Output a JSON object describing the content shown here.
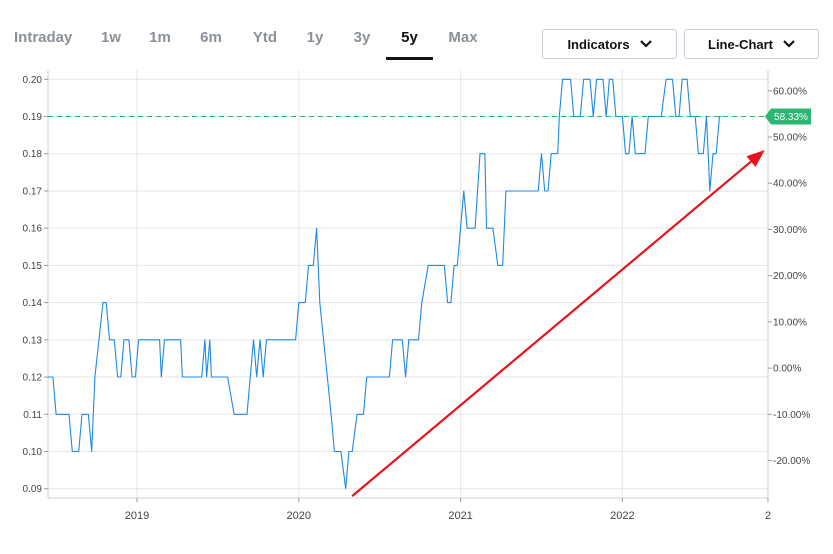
{
  "toolbar": {
    "tabs": [
      {
        "label": "Intraday"
      },
      {
        "label": "1w"
      },
      {
        "label": "1m"
      },
      {
        "label": "6m"
      },
      {
        "label": "Ytd"
      },
      {
        "label": "1y"
      },
      {
        "label": "3y"
      },
      {
        "label": "5y"
      },
      {
        "label": "Max"
      }
    ],
    "active_tab": "5y",
    "indicators_label": "Indicators",
    "chart_type_label": "Line-Chart"
  },
  "colors": {
    "line": "#1e88e5",
    "reference": "#2bb673",
    "badge": "#2bb673",
    "arrow": "#e8141b",
    "grid": "#e6e6e6"
  },
  "chart_data": {
    "type": "line",
    "y_ticks": [
      "0.20",
      "0.19",
      "0.18",
      "0.17",
      "0.16",
      "0.15",
      "0.14",
      "0.13",
      "0.12",
      "0.11",
      "0.10",
      "0.09"
    ],
    "ylim": [
      0.0875,
      0.2025
    ],
    "y2_ticks": [
      "60.00%",
      "50.00%",
      "40.00%",
      "30.00%",
      "20.00%",
      "10.00%",
      "0.00%",
      "-10.00%",
      "-20.00%"
    ],
    "y2lim": [
      -28.1,
      64.5
    ],
    "x_ticks": [
      "2019",
      "2020",
      "2021",
      "2022",
      "2"
    ],
    "xlim": [
      2018.45,
      2022.9
    ],
    "reference_value": 0.19,
    "reference_label": "58.33%",
    "annotation": {
      "type": "arrow",
      "from": [
        2020.33,
        0.088
      ],
      "to": [
        2022.88,
        0.181
      ]
    },
    "series": [
      {
        "points": [
          [
            2018.45,
            0.12
          ],
          [
            2018.48,
            0.12
          ],
          [
            2018.5,
            0.11
          ],
          [
            2018.58,
            0.11
          ],
          [
            2018.6,
            0.1
          ],
          [
            2018.64,
            0.1
          ],
          [
            2018.66,
            0.11
          ],
          [
            2018.7,
            0.11
          ],
          [
            2018.72,
            0.1
          ],
          [
            2018.74,
            0.12
          ],
          [
            2018.79,
            0.14
          ],
          [
            2018.81,
            0.14
          ],
          [
            2018.83,
            0.13
          ],
          [
            2018.86,
            0.13
          ],
          [
            2018.88,
            0.12
          ],
          [
            2018.9,
            0.12
          ],
          [
            2018.92,
            0.13
          ],
          [
            2018.95,
            0.13
          ],
          [
            2018.97,
            0.12
          ],
          [
            2018.99,
            0.12
          ],
          [
            2019.01,
            0.13
          ],
          [
            2019.14,
            0.13
          ],
          [
            2019.15,
            0.12
          ],
          [
            2019.17,
            0.13
          ],
          [
            2019.27,
            0.13
          ],
          [
            2019.28,
            0.12
          ],
          [
            2019.4,
            0.12
          ],
          [
            2019.42,
            0.13
          ],
          [
            2019.43,
            0.12
          ],
          [
            2019.45,
            0.13
          ],
          [
            2019.46,
            0.12
          ],
          [
            2019.56,
            0.12
          ],
          [
            2019.6,
            0.11
          ],
          [
            2019.68,
            0.11
          ],
          [
            2019.72,
            0.13
          ],
          [
            2019.74,
            0.12
          ],
          [
            2019.76,
            0.13
          ],
          [
            2019.78,
            0.12
          ],
          [
            2019.8,
            0.13
          ],
          [
            2019.98,
            0.13
          ],
          [
            2020.0,
            0.14
          ],
          [
            2020.04,
            0.14
          ],
          [
            2020.06,
            0.15
          ],
          [
            2020.09,
            0.15
          ],
          [
            2020.11,
            0.16
          ],
          [
            2020.13,
            0.14
          ],
          [
            2020.2,
            0.11
          ],
          [
            2020.22,
            0.1
          ],
          [
            2020.26,
            0.1
          ],
          [
            2020.29,
            0.09
          ],
          [
            2020.31,
            0.1
          ],
          [
            2020.33,
            0.1
          ],
          [
            2020.36,
            0.11
          ],
          [
            2020.4,
            0.11
          ],
          [
            2020.42,
            0.12
          ],
          [
            2020.56,
            0.12
          ],
          [
            2020.58,
            0.13
          ],
          [
            2020.64,
            0.13
          ],
          [
            2020.66,
            0.12
          ],
          [
            2020.68,
            0.13
          ],
          [
            2020.74,
            0.13
          ],
          [
            2020.76,
            0.14
          ],
          [
            2020.8,
            0.15
          ],
          [
            2020.9,
            0.15
          ],
          [
            2020.92,
            0.14
          ],
          [
            2020.94,
            0.14
          ],
          [
            2020.96,
            0.15
          ],
          [
            2020.98,
            0.15
          ],
          [
            2021.02,
            0.17
          ],
          [
            2021.04,
            0.16
          ],
          [
            2021.09,
            0.16
          ],
          [
            2021.12,
            0.18
          ],
          [
            2021.15,
            0.18
          ],
          [
            2021.16,
            0.16
          ],
          [
            2021.2,
            0.16
          ],
          [
            2021.23,
            0.15
          ],
          [
            2021.26,
            0.15
          ],
          [
            2021.28,
            0.17
          ],
          [
            2021.48,
            0.17
          ],
          [
            2021.5,
            0.18
          ],
          [
            2021.52,
            0.17
          ],
          [
            2021.54,
            0.17
          ],
          [
            2021.56,
            0.18
          ],
          [
            2021.6,
            0.18
          ],
          [
            2021.61,
            0.19
          ],
          [
            2021.63,
            0.2
          ],
          [
            2021.68,
            0.2
          ],
          [
            2021.7,
            0.19
          ],
          [
            2021.74,
            0.19
          ],
          [
            2021.76,
            0.2
          ],
          [
            2021.8,
            0.2
          ],
          [
            2021.82,
            0.19
          ],
          [
            2021.84,
            0.2
          ],
          [
            2021.88,
            0.2
          ],
          [
            2021.9,
            0.19
          ],
          [
            2021.92,
            0.2
          ],
          [
            2021.94,
            0.2
          ],
          [
            2021.96,
            0.19
          ],
          [
            2022.0,
            0.19
          ],
          [
            2022.02,
            0.18
          ],
          [
            2022.04,
            0.18
          ],
          [
            2022.06,
            0.19
          ],
          [
            2022.08,
            0.18
          ],
          [
            2022.14,
            0.18
          ],
          [
            2022.16,
            0.19
          ],
          [
            2022.24,
            0.19
          ],
          [
            2022.27,
            0.2
          ],
          [
            2022.31,
            0.2
          ],
          [
            2022.33,
            0.19
          ],
          [
            2022.35,
            0.19
          ],
          [
            2022.37,
            0.2
          ],
          [
            2022.4,
            0.2
          ],
          [
            2022.42,
            0.19
          ],
          [
            2022.45,
            0.19
          ],
          [
            2022.47,
            0.18
          ],
          [
            2022.5,
            0.18
          ],
          [
            2022.52,
            0.19
          ],
          [
            2022.54,
            0.17
          ],
          [
            2022.56,
            0.18
          ],
          [
            2022.58,
            0.18
          ],
          [
            2022.6,
            0.19
          ],
          [
            2022.61,
            0.19
          ]
        ]
      }
    ]
  }
}
